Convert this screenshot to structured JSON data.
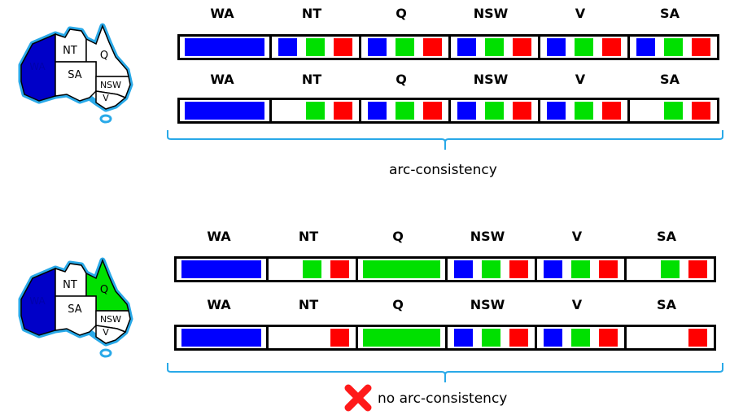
{
  "colors": {
    "blue": "#0000ff",
    "green": "#00e000",
    "red": "#ff0000",
    "accent": "#29a9e8",
    "map_blue": "#0000c8"
  },
  "columns": [
    "WA",
    "NT",
    "Q",
    "NSW",
    "V",
    "SA"
  ],
  "map_labels": {
    "wa": "WA",
    "nt": "NT",
    "q": "Q",
    "sa": "SA",
    "nsw": "NSW",
    "v": "V"
  },
  "panels": [
    {
      "map_q_green": false,
      "rows": [
        [
          {
            "assigned": "blue"
          },
          {
            "values": [
              "blue",
              "green",
              "red"
            ]
          },
          {
            "values": [
              "blue",
              "green",
              "red"
            ]
          },
          {
            "values": [
              "blue",
              "green",
              "red"
            ]
          },
          {
            "values": [
              "blue",
              "green",
              "red"
            ]
          },
          {
            "values": [
              "blue",
              "green",
              "red"
            ]
          }
        ],
        [
          {
            "assigned": "blue"
          },
          {
            "values": [
              null,
              "green",
              "red"
            ]
          },
          {
            "values": [
              "blue",
              "green",
              "red"
            ]
          },
          {
            "values": [
              "blue",
              "green",
              "red"
            ]
          },
          {
            "values": [
              "blue",
              "green",
              "red"
            ]
          },
          {
            "values": [
              null,
              "green",
              "red"
            ]
          }
        ]
      ],
      "caption": "arc-consistency",
      "failure": false
    },
    {
      "map_q_green": true,
      "rows": [
        [
          {
            "assigned": "blue"
          },
          {
            "values": [
              null,
              "green",
              "red"
            ]
          },
          {
            "assigned": "green"
          },
          {
            "values": [
              "blue",
              "green",
              "red"
            ]
          },
          {
            "values": [
              "blue",
              "green",
              "red"
            ]
          },
          {
            "values": [
              null,
              "green",
              "red"
            ]
          }
        ],
        [
          {
            "assigned": "blue"
          },
          {
            "values": [
              null,
              null,
              "red"
            ]
          },
          {
            "assigned": "green"
          },
          {
            "values": [
              "blue",
              "green",
              "red"
            ]
          },
          {
            "values": [
              "blue",
              "green",
              "red"
            ]
          },
          {
            "values": [
              null,
              null,
              "red"
            ]
          }
        ]
      ],
      "caption": "no arc-consistency",
      "failure": true
    }
  ]
}
